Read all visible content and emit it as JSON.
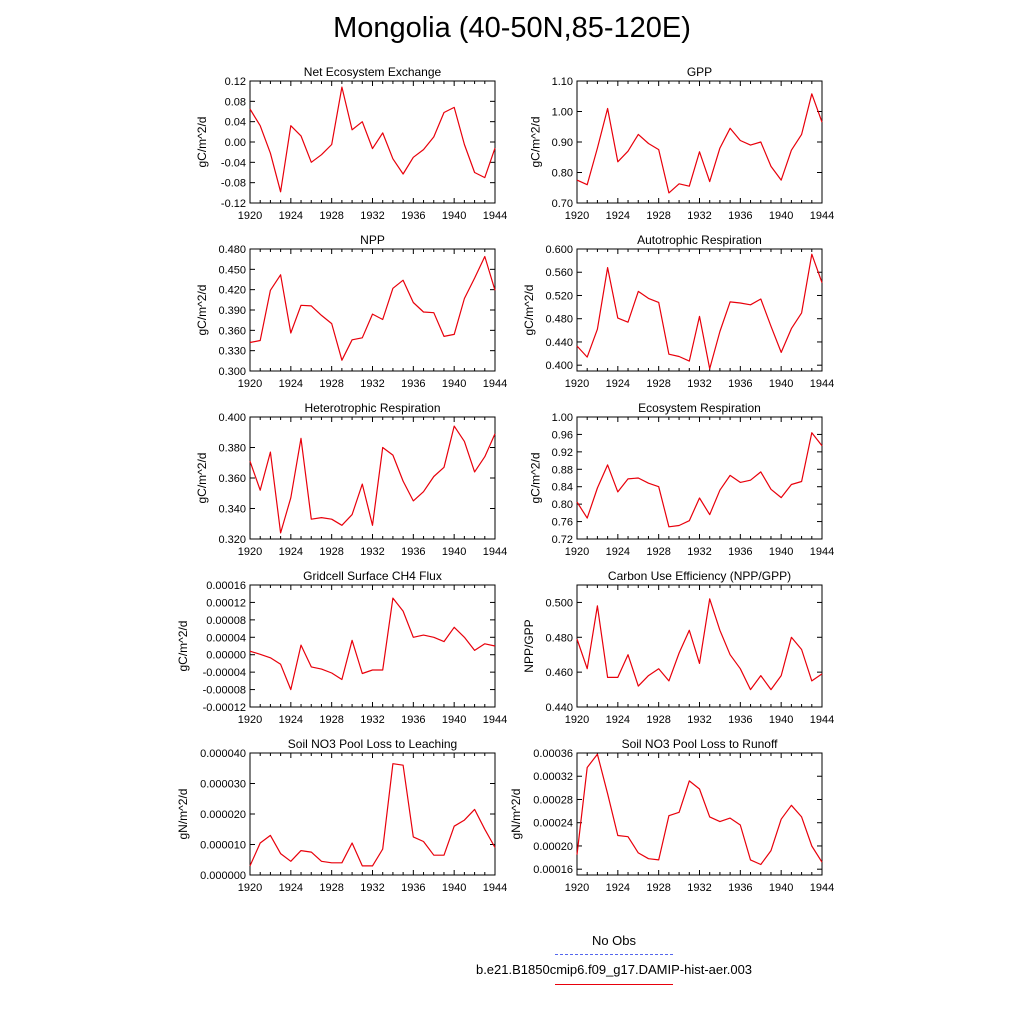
{
  "title": "Mongolia (40-50N,85-120E)",
  "line_color": "#e8000b",
  "legend": [
    {
      "label": "No Obs",
      "color": "#5566ee",
      "style": "dashed"
    },
    {
      "label": "b.e21.B1850cmip6.f09_g17.DAMIP-hist-aer.003",
      "color": "#e8000b",
      "style": "solid"
    }
  ],
  "chart_data": [
    {
      "type": "line",
      "title": "Net Ecosystem Exchange",
      "xlabel": "",
      "ylabel": "gC/m^2/d",
      "xlim": [
        1920,
        1944
      ],
      "ylim": [
        -0.12,
        0.12
      ],
      "xticks": [
        "1920",
        "1924",
        "1928",
        "1932",
        "1936",
        "1940",
        "1944"
      ],
      "yticks": [
        "-0.12",
        "-0.08",
        "-0.04",
        "0.00",
        "0.04",
        "0.08",
        "0.12"
      ],
      "x": [
        1920,
        1921,
        1922,
        1923,
        1924,
        1925,
        1926,
        1927,
        1928,
        1929,
        1930,
        1931,
        1932,
        1933,
        1934,
        1935,
        1936,
        1937,
        1938,
        1939,
        1940,
        1941,
        1942,
        1943,
        1944
      ],
      "series": [
        {
          "values": [
            0.065,
            0.032,
            -0.022,
            -0.098,
            0.032,
            0.012,
            -0.04,
            -0.025,
            -0.005,
            0.108,
            0.024,
            0.04,
            -0.013,
            0.018,
            -0.033,
            -0.063,
            -0.03,
            -0.015,
            0.01,
            0.058,
            0.068,
            -0.005,
            -0.06,
            -0.07,
            -0.012
          ]
        }
      ]
    },
    {
      "type": "line",
      "title": "GPP",
      "xlabel": "",
      "ylabel": "gC/m^2/d",
      "xlim": [
        1920,
        1944
      ],
      "ylim": [
        0.7,
        1.1
      ],
      "xticks": [
        "1920",
        "1924",
        "1928",
        "1932",
        "1936",
        "1940",
        "1944"
      ],
      "yticks": [
        "0.70",
        "0.80",
        "0.90",
        "1.00",
        "1.10"
      ],
      "x": [
        1920,
        1921,
        1922,
        1923,
        1924,
        1925,
        1926,
        1927,
        1928,
        1929,
        1930,
        1931,
        1932,
        1933,
        1934,
        1935,
        1936,
        1937,
        1938,
        1939,
        1940,
        1941,
        1942,
        1943,
        1944
      ],
      "series": [
        {
          "values": [
            0.775,
            0.76,
            0.88,
            1.01,
            0.835,
            0.87,
            0.925,
            0.895,
            0.875,
            0.733,
            0.763,
            0.755,
            0.868,
            0.77,
            0.88,
            0.945,
            0.905,
            0.89,
            0.9,
            0.82,
            0.775,
            0.873,
            0.925,
            1.058,
            0.965
          ]
        }
      ]
    },
    {
      "type": "line",
      "title": "NPP",
      "xlabel": "",
      "ylabel": "gC/m^2/d",
      "xlim": [
        1920,
        1944
      ],
      "ylim": [
        0.3,
        0.48
      ],
      "xticks": [
        "1920",
        "1924",
        "1928",
        "1932",
        "1936",
        "1940",
        "1944"
      ],
      "yticks": [
        "0.300",
        "0.330",
        "0.360",
        "0.390",
        "0.420",
        "0.450",
        "0.480"
      ],
      "x": [
        1920,
        1921,
        1922,
        1923,
        1924,
        1925,
        1926,
        1927,
        1928,
        1929,
        1930,
        1931,
        1932,
        1933,
        1934,
        1935,
        1936,
        1937,
        1938,
        1939,
        1940,
        1941,
        1942,
        1943,
        1944
      ],
      "series": [
        {
          "values": [
            0.342,
            0.345,
            0.419,
            0.442,
            0.356,
            0.397,
            0.396,
            0.382,
            0.37,
            0.316,
            0.346,
            0.349,
            0.384,
            0.376,
            0.422,
            0.434,
            0.401,
            0.387,
            0.386,
            0.351,
            0.354,
            0.407,
            0.437,
            0.469,
            0.419
          ]
        }
      ]
    },
    {
      "type": "line",
      "title": "Autotrophic Respiration",
      "xlabel": "",
      "ylabel": "gC/m^2/d",
      "xlim": [
        1920,
        1944
      ],
      "ylim": [
        0.39,
        0.6
      ],
      "xticks": [
        "1920",
        "1924",
        "1928",
        "1932",
        "1936",
        "1940",
        "1944"
      ],
      "yticks": [
        "0.400",
        "0.440",
        "0.480",
        "0.520",
        "0.560",
        "0.600"
      ],
      "x": [
        1920,
        1921,
        1922,
        1923,
        1924,
        1925,
        1926,
        1927,
        1928,
        1929,
        1930,
        1931,
        1932,
        1933,
        1934,
        1935,
        1936,
        1937,
        1938,
        1939,
        1940,
        1941,
        1942,
        1943,
        1944
      ],
      "series": [
        {
          "values": [
            0.433,
            0.414,
            0.462,
            0.568,
            0.481,
            0.474,
            0.527,
            0.515,
            0.508,
            0.419,
            0.415,
            0.407,
            0.484,
            0.394,
            0.458,
            0.509,
            0.507,
            0.504,
            0.514,
            0.467,
            0.422,
            0.463,
            0.49,
            0.591,
            0.542
          ]
        }
      ]
    },
    {
      "type": "line",
      "title": "Heterotrophic Respiration",
      "xlabel": "",
      "ylabel": "gC/m^2/d",
      "xlim": [
        1920,
        1944
      ],
      "ylim": [
        0.32,
        0.4
      ],
      "xticks": [
        "1920",
        "1924",
        "1928",
        "1932",
        "1936",
        "1940",
        "1944"
      ],
      "yticks": [
        "0.320",
        "0.340",
        "0.360",
        "0.380",
        "0.400"
      ],
      "x": [
        1920,
        1921,
        1922,
        1923,
        1924,
        1925,
        1926,
        1927,
        1928,
        1929,
        1930,
        1931,
        1932,
        1933,
        1934,
        1935,
        1936,
        1937,
        1938,
        1939,
        1940,
        1941,
        1942,
        1943,
        1944
      ],
      "series": [
        {
          "values": [
            0.371,
            0.352,
            0.377,
            0.324,
            0.347,
            0.386,
            0.333,
            0.334,
            0.333,
            0.329,
            0.336,
            0.356,
            0.329,
            0.38,
            0.375,
            0.358,
            0.345,
            0.351,
            0.361,
            0.367,
            0.394,
            0.384,
            0.364,
            0.374,
            0.389
          ]
        }
      ]
    },
    {
      "type": "line",
      "title": "Ecosystem Respiration",
      "xlabel": "",
      "ylabel": "gC/m^2/d",
      "xlim": [
        1920,
        1944
      ],
      "ylim": [
        0.72,
        1.0
      ],
      "xticks": [
        "1920",
        "1924",
        "1928",
        "1932",
        "1936",
        "1940",
        "1944"
      ],
      "yticks": [
        "0.72",
        "0.76",
        "0.80",
        "0.84",
        "0.88",
        "0.92",
        "0.96",
        "1.00"
      ],
      "x": [
        1920,
        1921,
        1922,
        1923,
        1924,
        1925,
        1926,
        1927,
        1928,
        1929,
        1930,
        1931,
        1932,
        1933,
        1934,
        1935,
        1936,
        1937,
        1938,
        1939,
        1940,
        1941,
        1942,
        1943,
        1944
      ],
      "series": [
        {
          "values": [
            0.805,
            0.768,
            0.837,
            0.89,
            0.828,
            0.858,
            0.86,
            0.848,
            0.84,
            0.748,
            0.751,
            0.762,
            0.814,
            0.776,
            0.832,
            0.866,
            0.85,
            0.855,
            0.874,
            0.834,
            0.815,
            0.845,
            0.852,
            0.964,
            0.934
          ]
        }
      ]
    },
    {
      "type": "line",
      "title": "Gridcell Surface CH4 Flux",
      "xlabel": "",
      "ylabel": "gC/m^2/d",
      "xlim": [
        1920,
        1944
      ],
      "ylim": [
        -0.00012,
        0.00016
      ],
      "xticks": [
        "1920",
        "1924",
        "1928",
        "1932",
        "1936",
        "1940",
        "1944"
      ],
      "yticks": [
        "-0.00012",
        "-0.00008",
        "-0.00004",
        "0.00000",
        "0.00004",
        "0.00008",
        "0.00012",
        "0.00016"
      ],
      "x": [
        1920,
        1921,
        1922,
        1923,
        1924,
        1925,
        1926,
        1927,
        1928,
        1929,
        1930,
        1931,
        1932,
        1933,
        1934,
        1935,
        1936,
        1937,
        1938,
        1939,
        1940,
        1941,
        1942,
        1943,
        1944
      ],
      "series": [
        {
          "values": [
            8e-06,
            1e-06,
            -7e-06,
            -2.2e-05,
            -8e-05,
            2.2e-05,
            -2.8e-05,
            -3.3e-05,
            -4.2e-05,
            -5.7e-05,
            3.3e-05,
            -4.3e-05,
            -3.5e-05,
            -3.5e-05,
            0.00013,
            0.0001,
            4e-05,
            4.5e-05,
            4e-05,
            3e-05,
            6.3e-05,
            4e-05,
            1e-05,
            2.5e-05,
            2e-05
          ]
        }
      ]
    },
    {
      "type": "line",
      "title": "Carbon Use Efficiency (NPP/GPP)",
      "xlabel": "",
      "ylabel": "NPP/GPP",
      "xlim": [
        1920,
        1944
      ],
      "ylim": [
        0.44,
        0.51
      ],
      "xticks": [
        "1920",
        "1924",
        "1928",
        "1932",
        "1936",
        "1940",
        "1944"
      ],
      "yticks": [
        "0.440",
        "0.460",
        "0.480",
        "0.500"
      ],
      "x": [
        1920,
        1921,
        1922,
        1923,
        1924,
        1925,
        1926,
        1927,
        1928,
        1929,
        1930,
        1931,
        1932,
        1933,
        1934,
        1935,
        1936,
        1937,
        1938,
        1939,
        1940,
        1941,
        1942,
        1943,
        1944
      ],
      "series": [
        {
          "values": [
            0.479,
            0.462,
            0.498,
            0.457,
            0.457,
            0.47,
            0.452,
            0.458,
            0.462,
            0.455,
            0.471,
            0.484,
            0.465,
            0.502,
            0.484,
            0.47,
            0.462,
            0.45,
            0.458,
            0.45,
            0.458,
            0.48,
            0.473,
            0.455,
            0.459
          ]
        }
      ]
    },
    {
      "type": "line",
      "title": "Soil NO3 Pool Loss to Leaching",
      "xlabel": "",
      "ylabel": "gN/m^2/d",
      "xlim": [
        1920,
        1944
      ],
      "ylim": [
        0.0,
        4e-05
      ],
      "xticks": [
        "1920",
        "1924",
        "1928",
        "1932",
        "1936",
        "1940",
        "1944"
      ],
      "yticks": [
        "0.000000",
        "0.000010",
        "0.000020",
        "0.000030",
        "0.000040"
      ],
      "x": [
        1920,
        1921,
        1922,
        1923,
        1924,
        1925,
        1926,
        1927,
        1928,
        1929,
        1930,
        1931,
        1932,
        1933,
        1934,
        1935,
        1936,
        1937,
        1938,
        1939,
        1940,
        1941,
        1942,
        1943,
        1944
      ],
      "series": [
        {
          "values": [
            3e-06,
            1.05e-05,
            1.3e-05,
            7e-06,
            4.5e-06,
            8e-06,
            7.5e-06,
            4.5e-06,
            4e-06,
            4e-06,
            1.05e-05,
            3e-06,
            3e-06,
            8.5e-06,
            3.65e-05,
            3.6e-05,
            1.25e-05,
            1.1e-05,
            6.5e-06,
            6.5e-06,
            1.6e-05,
            1.8e-05,
            2.15e-05,
            1.5e-05,
            9e-06
          ]
        }
      ]
    },
    {
      "type": "line",
      "title": "Soil NO3 Pool Loss to Runoff",
      "xlabel": "",
      "ylabel": "gN/m^2/d",
      "xlim": [
        1920,
        1944
      ],
      "ylim": [
        0.00015,
        0.00036
      ],
      "xticks": [
        "1920",
        "1924",
        "1928",
        "1932",
        "1936",
        "1940",
        "1944"
      ],
      "yticks": [
        "0.00016",
        "0.00020",
        "0.00024",
        "0.00028",
        "0.00032",
        "0.00036"
      ],
      "x": [
        1920,
        1921,
        1922,
        1923,
        1924,
        1925,
        1926,
        1927,
        1928,
        1929,
        1930,
        1931,
        1932,
        1933,
        1934,
        1935,
        1936,
        1937,
        1938,
        1939,
        1940,
        1941,
        1942,
        1943,
        1944
      ],
      "series": [
        {
          "values": [
            0.000185,
            0.000335,
            0.000358,
            0.00029,
            0.000218,
            0.000216,
            0.000188,
            0.000178,
            0.000176,
            0.000252,
            0.000258,
            0.000312,
            0.000298,
            0.00025,
            0.000242,
            0.000248,
            0.000236,
            0.000176,
            0.000168,
            0.000192,
            0.000246,
            0.00027,
            0.00025,
            0.0002,
            0.000172
          ]
        }
      ]
    }
  ]
}
